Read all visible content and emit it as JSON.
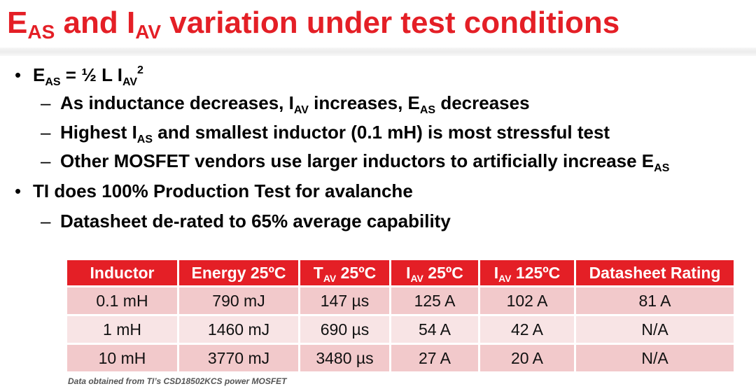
{
  "title": {
    "e": "E",
    "e_sub": "AS",
    "and": " and ",
    "i": "I",
    "i_sub": "AV",
    "rest": " variation under test conditions"
  },
  "formula": {
    "e": "E",
    "e_sub": "AS",
    "mid": " = ½ L I",
    "i_sub": "AV",
    "sup": "2"
  },
  "sub1": {
    "a": "As inductance decreases, I",
    "a_sub": "AV",
    "b": " increases, E",
    "b_sub": "AS",
    "c": " decreases"
  },
  "sub2": {
    "a": "Highest I",
    "a_sub": "AS",
    "b": " and smallest inductor (0.1 mH) is most stressful test"
  },
  "sub3": {
    "a": "Other MOSFET vendors use larger inductors to artificially increase E",
    "a_sub": "AS"
  },
  "bullet2": "TI does 100% Production Test for avalanche",
  "sub4": "Datasheet de-rated to 65% average capability",
  "bullet_glyph": "•",
  "dash_glyph": "–",
  "table": {
    "headers": {
      "h0": "Inductor",
      "h1": "Energy 25ºC",
      "h2_main": "T",
      "h2_sub": "AV",
      "h2_rest": " 25ºC",
      "h3_main": "I",
      "h3_sub": "AV",
      "h3_rest": " 25ºC",
      "h4_main": "I",
      "h4_sub": "AV",
      "h4_rest": " 125ºC",
      "h5": "Datasheet Rating"
    },
    "rows": [
      [
        "0.1 mH",
        "790 mJ",
        "147 µs",
        "125 A",
        "102 A",
        "81 A"
      ],
      [
        "1 mH",
        "1460 mJ",
        "690 µs",
        "54 A",
        "42 A",
        "N/A"
      ],
      [
        "10 mH",
        "3770 mJ",
        "3480 µs",
        "27 A",
        "20 A",
        "N/A"
      ]
    ]
  },
  "footnote": "Data obtained from TI’s CSD18502KCS power MOSFET",
  "colors": {
    "accent": "#e41f26",
    "row_dark": "#f2c9cb",
    "row_light": "#f8e4e5"
  }
}
